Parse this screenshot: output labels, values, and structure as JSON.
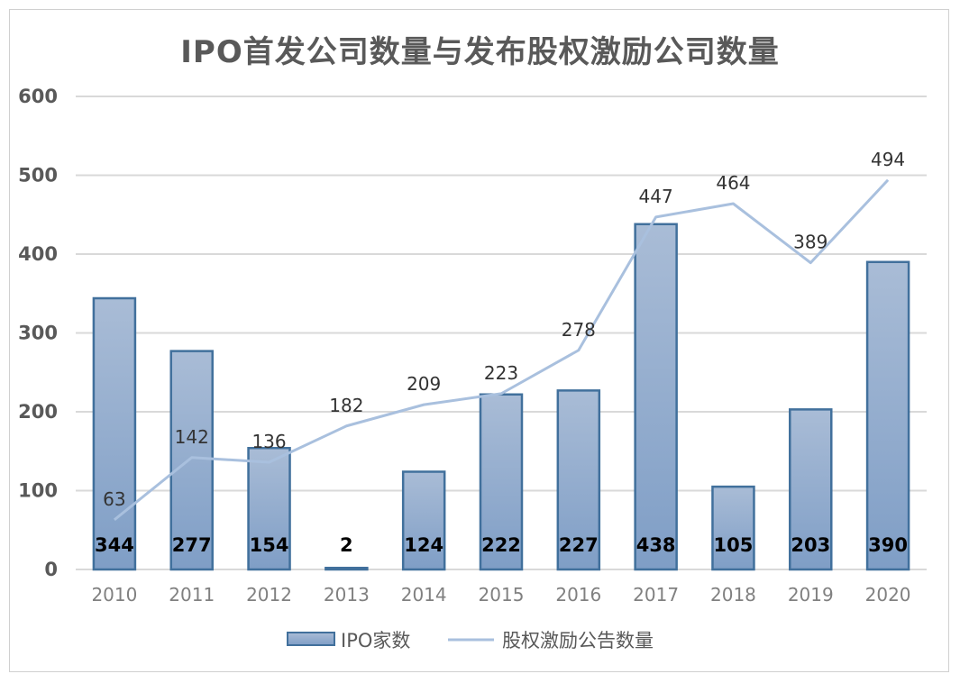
{
  "chart_data": {
    "type": "bar",
    "title": "IPO首发公司数量与发布股权激励公司数量",
    "categories": [
      "2010",
      "2011",
      "2012",
      "2013",
      "2014",
      "2015",
      "2016",
      "2017",
      "2018",
      "2019",
      "2020"
    ],
    "series": [
      {
        "name": "IPO家数",
        "type": "bar",
        "values": [
          344,
          277,
          154,
          2,
          124,
          222,
          227,
          438,
          105,
          203,
          390
        ]
      },
      {
        "name": "股权激励公告数量",
        "type": "line",
        "values": [
          63,
          142,
          136,
          182,
          209,
          223,
          278,
          447,
          464,
          389,
          494
        ]
      }
    ],
    "ylim": [
      0,
      600
    ],
    "yticks": [
      0,
      100,
      200,
      300,
      400,
      500,
      600
    ],
    "grid": true,
    "legend_position": "bottom",
    "colors": {
      "bar_fill_top": "#a9bcd6",
      "bar_fill_bottom": "#7f9ec6",
      "bar_stroke": "#41709c",
      "line": "#a9c0de",
      "grid": "#d9d9d9"
    }
  }
}
